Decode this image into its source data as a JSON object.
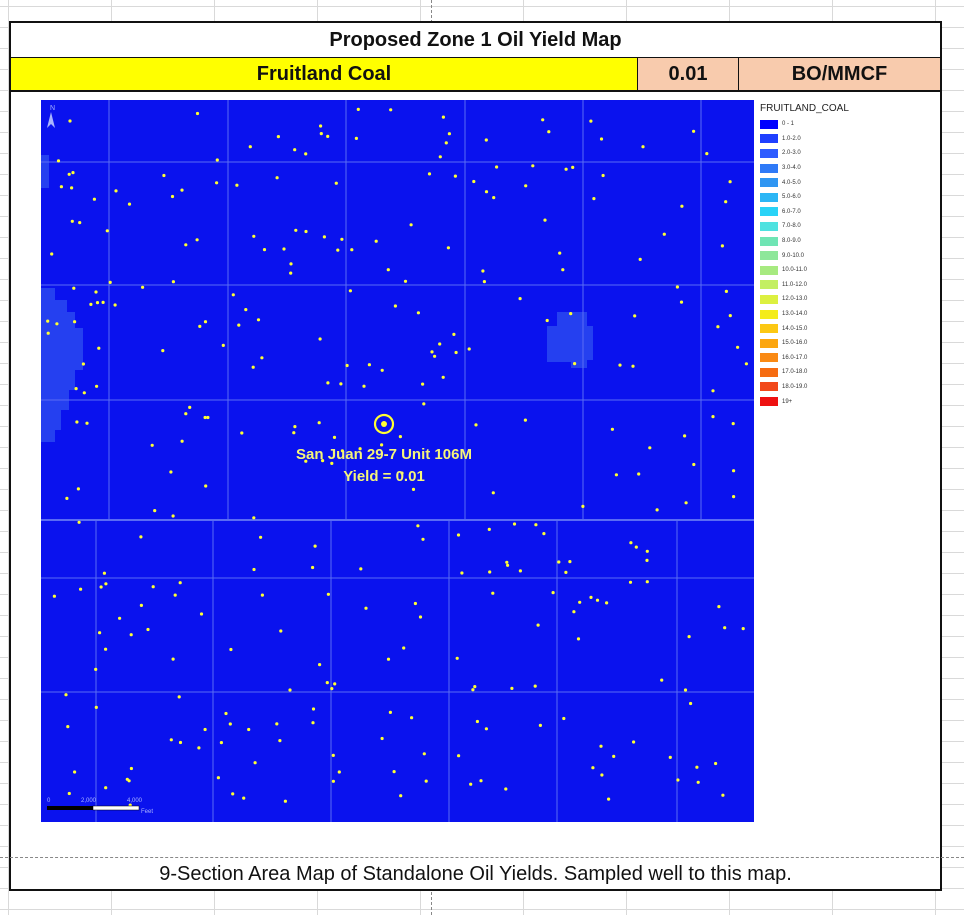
{
  "header": {
    "title": "Proposed Zone 1 Oil Yield Map",
    "formation": "Fruitland Coal",
    "value": "0.01",
    "unit": "BO/MMCF"
  },
  "map": {
    "north_arrow": "N",
    "well_label": "San Juan 29-7 Unit 106M",
    "yield_label": "Yield = 0.01",
    "well_color": "#ffff33",
    "background_color": "#0a12ee",
    "scale_labels": [
      "0",
      "2,000",
      "4,000"
    ],
    "scale_unit": "Feet"
  },
  "legend": {
    "title": "FRUITLAND_COAL",
    "items": [
      {
        "label": "0 - 1",
        "color": "#0000ff"
      },
      {
        "label": "1.0-2.0",
        "color": "#1f3fff"
      },
      {
        "label": "2.0-3.0",
        "color": "#2e5cff"
      },
      {
        "label": "3.0-4.0",
        "color": "#2f7af7"
      },
      {
        "label": "4.0-5.0",
        "color": "#2f96f2"
      },
      {
        "label": "5.0-6.0",
        "color": "#2cb6f5"
      },
      {
        "label": "6.0-7.0",
        "color": "#29d3f7"
      },
      {
        "label": "7.0-8.0",
        "color": "#4ee2e0"
      },
      {
        "label": "8.0-9.0",
        "color": "#6fe5b4"
      },
      {
        "label": "9.0-10.0",
        "color": "#8ee79a"
      },
      {
        "label": "10.0-11.0",
        "color": "#a7ea80"
      },
      {
        "label": "11.0-12.0",
        "color": "#c3ef62"
      },
      {
        "label": "12.0-13.0",
        "color": "#dcf040"
      },
      {
        "label": "13.0-14.0",
        "color": "#f4ec1a"
      },
      {
        "label": "14.0-15.0",
        "color": "#fcc813"
      },
      {
        "label": "15.0-16.0",
        "color": "#fca60f"
      },
      {
        "label": "16.0-17.0",
        "color": "#fa8a14"
      },
      {
        "label": "17.0-18.0",
        "color": "#f66c11"
      },
      {
        "label": "18.0-19.0",
        "color": "#f2481a"
      },
      {
        "label": "19+",
        "color": "#ee1111"
      }
    ]
  },
  "caption": "9-Section Area Map of Standalone Oil Yields. Sampled well to this map."
}
